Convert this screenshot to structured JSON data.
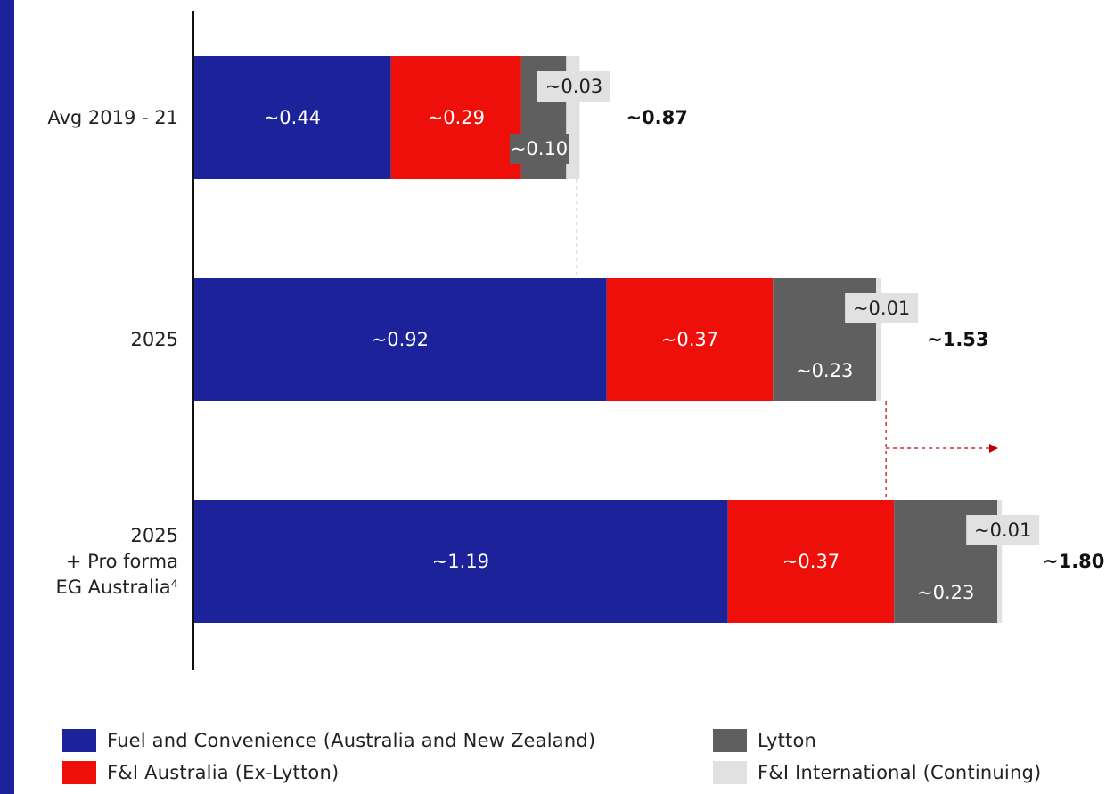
{
  "chart_data": {
    "type": "bar",
    "orientation": "horizontal",
    "stacked": true,
    "title": "",
    "xlabel": "",
    "ylabel": "",
    "xlim": [
      0,
      1.8
    ],
    "grid": false,
    "legend_position": "bottom",
    "categories": [
      "Avg 2019 - 21",
      "2025",
      "2025\n+ Pro forma\nEG Australia⁴"
    ],
    "series": [
      {
        "name": "Fuel and Convenience (Australia and New Zealand)",
        "color": "#1b229a",
        "values": [
          0.44,
          0.92,
          1.19
        ],
        "labels": [
          "~0.44",
          "~0.92",
          "~1.19"
        ]
      },
      {
        "name": "F&I Australia (Ex-Lytton)",
        "color": "#ee0f0b",
        "values": [
          0.29,
          0.37,
          0.37
        ],
        "labels": [
          "~0.29",
          "~0.37",
          "~0.37"
        ]
      },
      {
        "name": "Lytton",
        "color": "#5f5f5f",
        "values": [
          0.1,
          0.23,
          0.23
        ],
        "labels": [
          "~0.10",
          "~0.23",
          "~0.23"
        ]
      },
      {
        "name": "F&I International (Continuing)",
        "color": "#e1e1e1",
        "values": [
          0.03,
          0.01,
          0.01
        ],
        "labels": [
          "~0.03",
          "~0.01",
          "~0.01"
        ]
      }
    ],
    "totals": [
      0.87,
      1.53,
      1.8
    ],
    "total_labels": [
      "~0.87",
      "~1.53",
      "~1.80"
    ]
  }
}
